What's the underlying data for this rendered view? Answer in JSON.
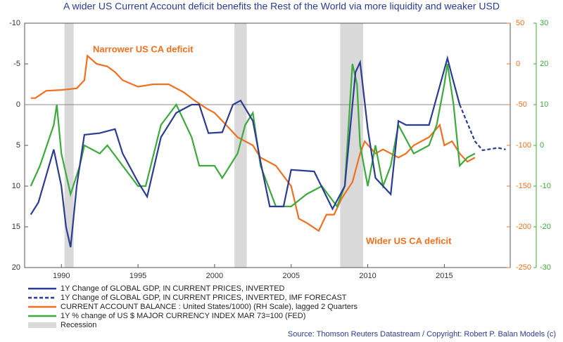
{
  "chart_data": {
    "type": "line",
    "title": "A wider US Current Account deficit benefits the Rest of the World via more liquidity and weaker USD",
    "xlim": [
      1987.6,
      2019.3
    ],
    "xticks": [
      1990,
      1995,
      2000,
      2005,
      2010,
      2015
    ],
    "ylim": [
      -10,
      20
    ],
    "y_inverted": true,
    "yticks": [
      -10,
      -5,
      0,
      5,
      10,
      15,
      20
    ],
    "y2lim": [
      -250,
      50
    ],
    "y2ticks": [
      50,
      0,
      -50,
      -100,
      -150,
      -200,
      -250
    ],
    "y3lim": [
      -30,
      30
    ],
    "y3ticks": [
      30,
      20,
      10,
      0,
      -10,
      -20,
      -30
    ],
    "recessions": [
      [
        1990.2,
        1990.8
      ],
      [
        2001.3,
        2002.1
      ],
      [
        2008.2,
        2009.7
      ]
    ],
    "recession_label": "Recession",
    "recession_color": "#d9d9d9",
    "annotations": [
      "Narrower US CA deficit",
      "Wider US CA deficit"
    ],
    "source": "Source: Thomson Reuters Datastream / Copyright: Robert P. Balan Models (c)",
    "series": [
      {
        "name": "1Y Change of GLOBAL GDP, IN CURRENT PRICES, INVERTED",
        "color": "#2b3c92",
        "axis": "y",
        "x": [
          1988,
          1988.5,
          1989.5,
          1990,
          1990.3,
          1990.6,
          1991,
          1991.5,
          1992.5,
          1993.5,
          1994,
          1995,
          1995.6,
          1996.5,
          1997.5,
          1998.5,
          1999,
          1999.6,
          2000.5,
          2001.2,
          2001.7,
          2002.5,
          2003,
          2003.6,
          2004.5,
          2005,
          2006.5,
          2007.7,
          2008.5,
          2009.2,
          2009.5,
          2010,
          2010.5,
          2011.5,
          2012,
          2012.5,
          2013.5,
          2014,
          2015.2,
          2015.5,
          2016
        ],
        "values": [
          13.5,
          12,
          5.5,
          10,
          15,
          17.5,
          10,
          3.7,
          3.5,
          3,
          6,
          9.5,
          11.3,
          4,
          1,
          0,
          0,
          3.5,
          3.4,
          0,
          -0.5,
          2,
          7,
          12.5,
          12.5,
          8,
          8.2,
          12.8,
          10,
          -4,
          -5.2,
          3,
          9,
          11,
          2,
          2.5,
          2.5,
          2.5,
          -5.7,
          -3.5,
          0
        ]
      },
      {
        "name": "1Y Change of GLOBAL GDP, IN CURRENT PRICES, INVERTED, IMF FORECAST",
        "color": "#2b3c92",
        "axis": "y",
        "dashed": true,
        "x": [
          2016,
          2017,
          2017.5,
          2018.5,
          2019
        ],
        "values": [
          0,
          4.5,
          5.6,
          5.3,
          5.5
        ]
      },
      {
        "name": "CURRENT ACCOUNT BALANCE : United States/1000) (RH Scale), lagged 2 Quarters",
        "color": "#f07020",
        "axis": "y2",
        "x": [
          1988,
          1988.3,
          1989,
          1990,
          1991,
          1991.5,
          1991.7,
          1992.3,
          1993,
          1993.5,
          1994,
          1995,
          1996,
          1997,
          1998,
          1998.7,
          1999.5,
          2000,
          2001,
          2001.5,
          2002.5,
          2003,
          2004,
          2005,
          2005.5,
          2006,
          2006.8,
          2007.3,
          2007.8,
          2008.3,
          2009,
          2009.5,
          2009.8,
          2010.5,
          2011,
          2012,
          2012.5,
          2013,
          2014,
          2014.7,
          2015,
          2015.5,
          2016,
          2016.5,
          2017
        ],
        "values": [
          -42,
          -42,
          -33,
          -32,
          -30,
          -20,
          10,
          0,
          -3,
          -10,
          -20,
          -28,
          -25,
          -25,
          -35,
          -45,
          -55,
          -60,
          -80,
          -90,
          -100,
          -115,
          -125,
          -150,
          -190,
          -195,
          -205,
          -185,
          -185,
          -165,
          -145,
          -110,
          -95,
          -110,
          -105,
          -115,
          -110,
          -100,
          -90,
          -75,
          -100,
          -95,
          -110,
          -120,
          -115
        ]
      },
      {
        "name": "1Y % change of US $ MAJOR CURRENCY INDEX MAR 73=100 (FED)",
        "color": "#3caa3c",
        "axis": "y3",
        "x": [
          1988,
          1988.6,
          1989.5,
          1989.7,
          1990,
          1990.6,
          1991.2,
          1991.5,
          1992.5,
          1993,
          1994,
          1995,
          1995.5,
          1996.5,
          1997.5,
          1998.5,
          1999,
          2000,
          2000.5,
          2001.5,
          2002,
          2002.5,
          2003,
          2004,
          2005,
          2006,
          2007,
          2008,
          2008.5,
          2009,
          2009.3,
          2009.5,
          2010,
          2010.5,
          2011,
          2011.5,
          2012,
          2013,
          2014,
          2014.5,
          2015,
          2015.2,
          2015.6,
          2016,
          2016.5,
          2017
        ],
        "values": [
          -10,
          -5,
          5,
          10,
          -2,
          -12,
          -5,
          0,
          -2,
          0,
          -5,
          -10,
          -10,
          5,
          10,
          2,
          -5,
          -5,
          -8,
          -2,
          5,
          8,
          -5,
          -15,
          -15,
          -12,
          -10,
          -15,
          -10,
          20,
          15,
          0,
          -10,
          0,
          -10,
          -5,
          5,
          -2,
          0,
          5,
          15,
          20,
          10,
          -5,
          -3,
          -2
        ]
      }
    ]
  }
}
